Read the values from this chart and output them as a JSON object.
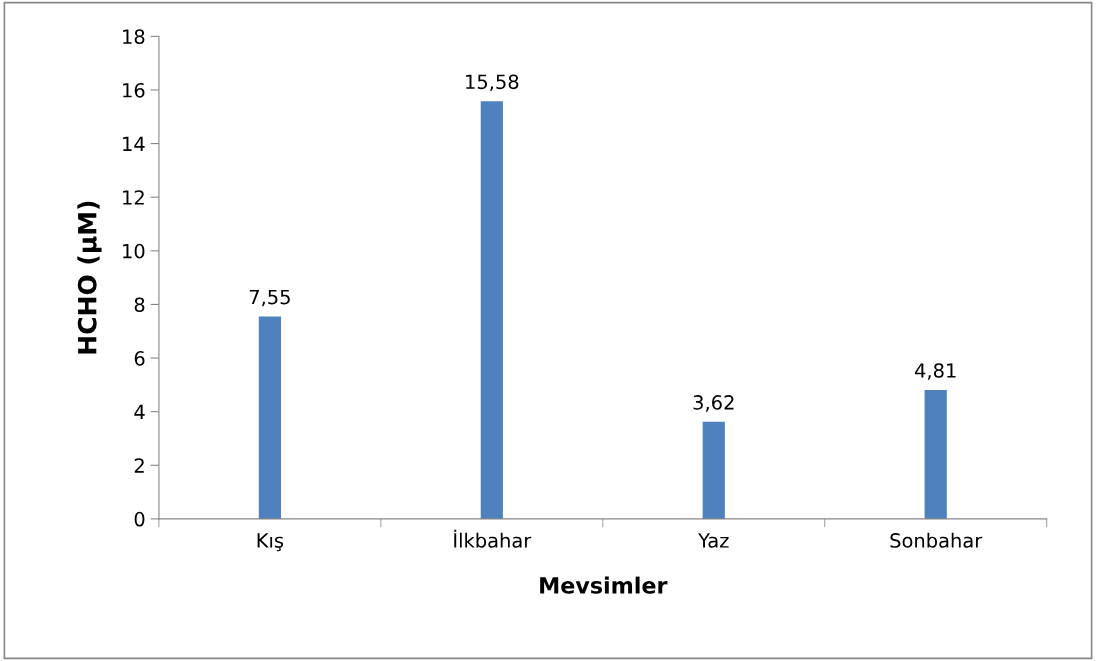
{
  "chart_data": {
    "type": "bar",
    "xlabel": "Mevsimler",
    "ylabel": "HCHO (µM)",
    "categories": [
      "Kış",
      "İlkbahar",
      "Yaz",
      "Sonbahar"
    ],
    "values": [
      7.55,
      15.58,
      3.62,
      4.81
    ],
    "value_labels": [
      "7,55",
      "15,58",
      "3,62",
      "4,81"
    ],
    "color": "#4f81bd",
    "ylim": [
      0,
      18
    ],
    "yticks": [
      0,
      2,
      4,
      6,
      8,
      10,
      12,
      14,
      16,
      18
    ],
    "grid": false,
    "legend": false
  }
}
